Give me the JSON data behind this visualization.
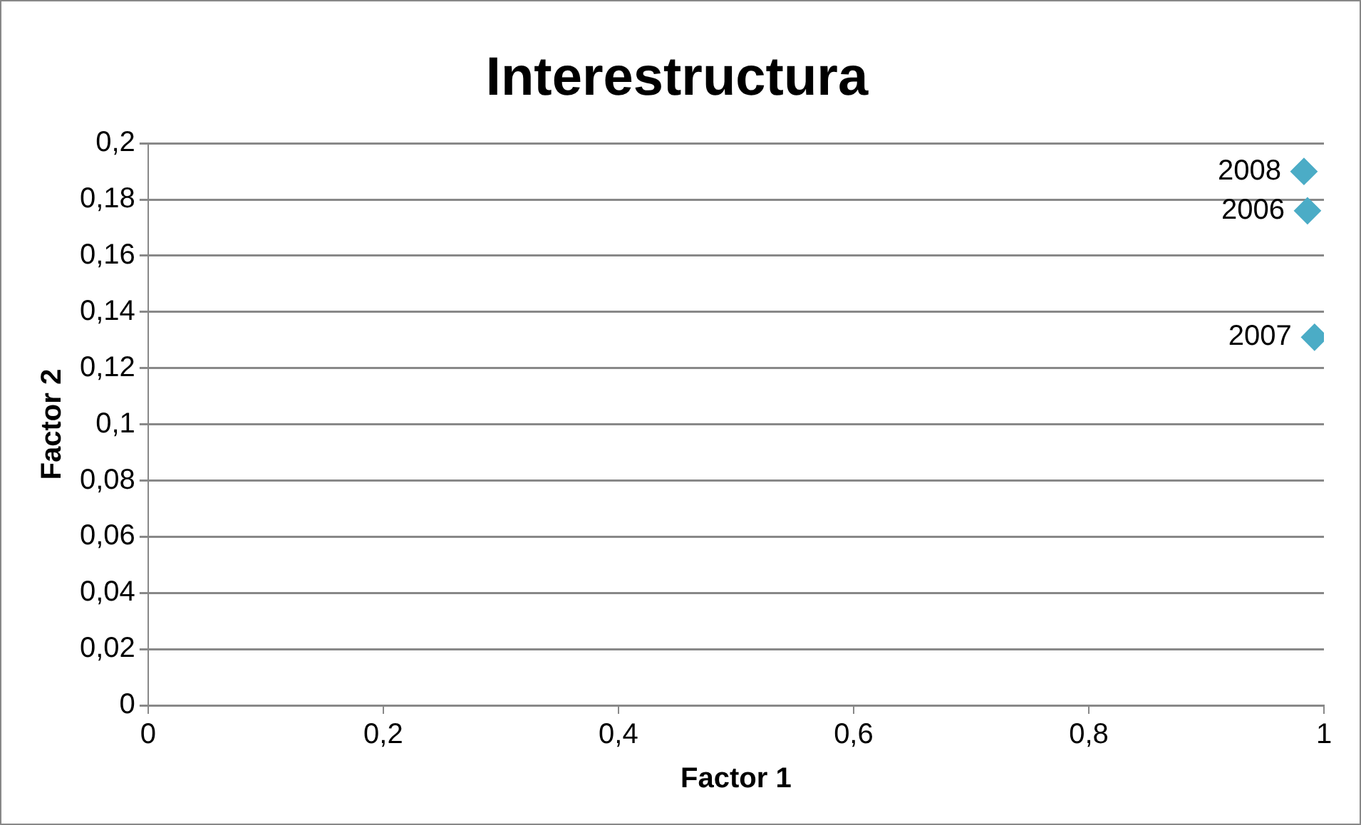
{
  "chart_data": {
    "type": "scatter",
    "title": "Interestructura",
    "xlabel": "Factor 1",
    "ylabel": "Factor 2",
    "series": [
      {
        "color": "#4bacc6",
        "x": [
          0.983,
          0.986,
          0.992
        ],
        "values": [
          0.19,
          0.176,
          0.131
        ]
      }
    ],
    "annotations": [
      {
        "text": "2008",
        "x": 0.983,
        "y": 0.19
      },
      {
        "text": "2006",
        "x": 0.986,
        "y": 0.176
      },
      {
        "text": "2007",
        "x": 0.992,
        "y": 0.131
      }
    ],
    "xlim": [
      0,
      1
    ],
    "xticks": [
      0,
      {
        "value": 0.2,
        "label": "0,2"
      },
      {
        "value": 0.4,
        "label": "0,4"
      },
      {
        "value": 0.6,
        "label": "0,6"
      },
      {
        "value": 0.8,
        "label": "0,8"
      },
      1
    ],
    "ylim": [
      0,
      0.2
    ],
    "yticks": [
      0,
      {
        "value": 0.02,
        "label": "0,02"
      },
      {
        "value": 0.04,
        "label": "0,04"
      },
      {
        "value": 0.06,
        "label": "0,06"
      },
      {
        "value": 0.08,
        "label": "0,08"
      },
      {
        "value": 0.1,
        "label": "0,1"
      },
      {
        "value": 0.12,
        "label": "0,12"
      },
      {
        "value": 0.14,
        "label": "0,14"
      },
      {
        "value": 0.16,
        "label": "0,16"
      },
      {
        "value": 0.18,
        "label": "0,18"
      },
      {
        "value": 0.2,
        "label": "0,2"
      }
    ],
    "grid": "y",
    "marker": "diamond",
    "legend": false
  }
}
